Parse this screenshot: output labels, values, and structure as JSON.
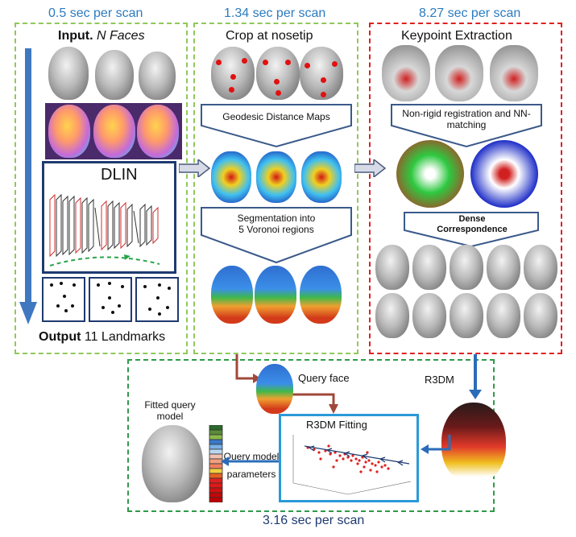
{
  "stage1": {
    "timing": "0.5 sec per scan",
    "title_bold": "Input.",
    "title_rest": " N Faces",
    "network_label": "DLIN",
    "output_bold": "Output",
    "output_rest": " 11 Landmarks"
  },
  "stage2": {
    "timing": "1.34 sec per scan",
    "title": "Crop at nosetip",
    "step1": "Geodesic Distance Maps",
    "step2": "Segmentation into 5 Voronoi regions"
  },
  "stage3": {
    "timing": "8.27 sec per scan",
    "title": "Keypoint Extraction",
    "step1": "Non-rigid registration and NN-matching",
    "step2": "Dense Correspondence"
  },
  "stage4": {
    "timing": "3.16 sec per scan",
    "query_face": "Query face",
    "r3dm": "R3DM",
    "fitting_title": "R3DM Fitting",
    "fitted_label": "Fitted query model",
    "query_params": "Query model parameters"
  },
  "colors": {
    "timing_blue": "#2b7bc0",
    "arrow_blue": "#2b6cb8",
    "arrow_brown": "#a0483a",
    "frame_green": "#8fc95a",
    "frame_red": "#e02020"
  }
}
